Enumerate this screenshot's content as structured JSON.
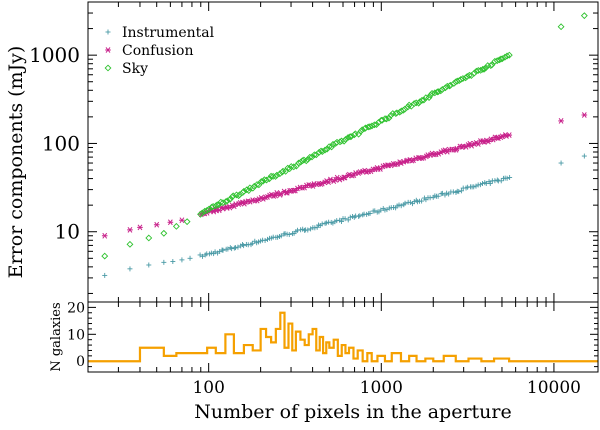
{
  "chart_data": [
    {
      "type": "scatter",
      "panel": "top",
      "ylabel": "Error components (mJy)",
      "xscale": "log",
      "yscale": "log",
      "xlim": [
        20,
        18000
      ],
      "ylim": [
        1.6,
        4000
      ],
      "y_ticks": [
        10,
        100,
        1000
      ],
      "y_tick_labels": [
        "10",
        "100",
        "1000"
      ],
      "legend_position": "top-left",
      "series": [
        {
          "name": "Instrumental",
          "color": "#4a9aa6",
          "marker": "plus",
          "trend": {
            "x_start": 90,
            "x_end": 5500,
            "y_start": 5.3,
            "y_end": 41
          },
          "outliers": [
            [
              25,
              3.2
            ],
            [
              35,
              3.8
            ],
            [
              45,
              4.2
            ],
            [
              55,
              4.5
            ],
            [
              62,
              4.6
            ],
            [
              70,
              4.8
            ],
            [
              78,
              5.0
            ],
            [
              11000,
              60
            ],
            [
              15000,
              72
            ]
          ]
        },
        {
          "name": "Confusion",
          "color": "#c8228b",
          "marker": "asterisk",
          "trend": {
            "x_start": 90,
            "x_end": 5500,
            "y_start": 16,
            "y_end": 125
          },
          "outliers": [
            [
              25,
              9.0
            ],
            [
              35,
              10.5
            ],
            [
              40,
              11.2
            ],
            [
              50,
              12.0
            ],
            [
              60,
              12.8
            ],
            [
              70,
              13.5
            ],
            [
              11000,
              180
            ],
            [
              15000,
              210
            ]
          ]
        },
        {
          "name": "Sky",
          "color": "#2fc22f",
          "marker": "diamond",
          "trend": {
            "x_start": 90,
            "x_end": 5500,
            "y_start": 16,
            "y_end": 1000
          },
          "outliers": [
            [
              25,
              5.3
            ],
            [
              35,
              7.2
            ],
            [
              45,
              8.5
            ],
            [
              55,
              9.6
            ],
            [
              65,
              11.5
            ],
            [
              75,
              13
            ],
            [
              11000,
              2100
            ],
            [
              15000,
              2800
            ]
          ]
        }
      ]
    },
    {
      "type": "line",
      "panel": "bottom",
      "step": true,
      "xlabel": "Number of pixels in the aperture",
      "ylabel": "N galaxies",
      "xscale": "log",
      "xlim": [
        20,
        18000
      ],
      "ylim": [
        -4,
        22
      ],
      "y_ticks": [
        0,
        10,
        20
      ],
      "y_tick_labels": [
        "0",
        "10",
        "20"
      ],
      "x_ticks": [
        100,
        1000,
        10000
      ],
      "x_tick_labels": [
        "100",
        "1000",
        "10000"
      ],
      "color": "#f5a000",
      "x": [
        20,
        40,
        55,
        65,
        85,
        98,
        110,
        125,
        140,
        160,
        180,
        200,
        215,
        230,
        245,
        260,
        275,
        290,
        305,
        320,
        340,
        360,
        380,
        400,
        420,
        440,
        460,
        480,
        500,
        530,
        560,
        590,
        620,
        650,
        690,
        730,
        780,
        830,
        880,
        950,
        1050,
        1150,
        1300,
        1450,
        1600,
        1800,
        2000,
        2300,
        2700,
        3200,
        3800,
        4500,
        5500,
        15000,
        18000
      ],
      "y": [
        0,
        5,
        2,
        3,
        3,
        5,
        3,
        10,
        3,
        6,
        4,
        12,
        9,
        7,
        12,
        18,
        5,
        14,
        4,
        11,
        8,
        6,
        10,
        12,
        4,
        9,
        3,
        7,
        5,
        8,
        2,
        6,
        3,
        5,
        1,
        4,
        0,
        3,
        0,
        2,
        0,
        3,
        0,
        2,
        0,
        1,
        0,
        2,
        0,
        1,
        0,
        1,
        0,
        0,
        0
      ]
    }
  ]
}
